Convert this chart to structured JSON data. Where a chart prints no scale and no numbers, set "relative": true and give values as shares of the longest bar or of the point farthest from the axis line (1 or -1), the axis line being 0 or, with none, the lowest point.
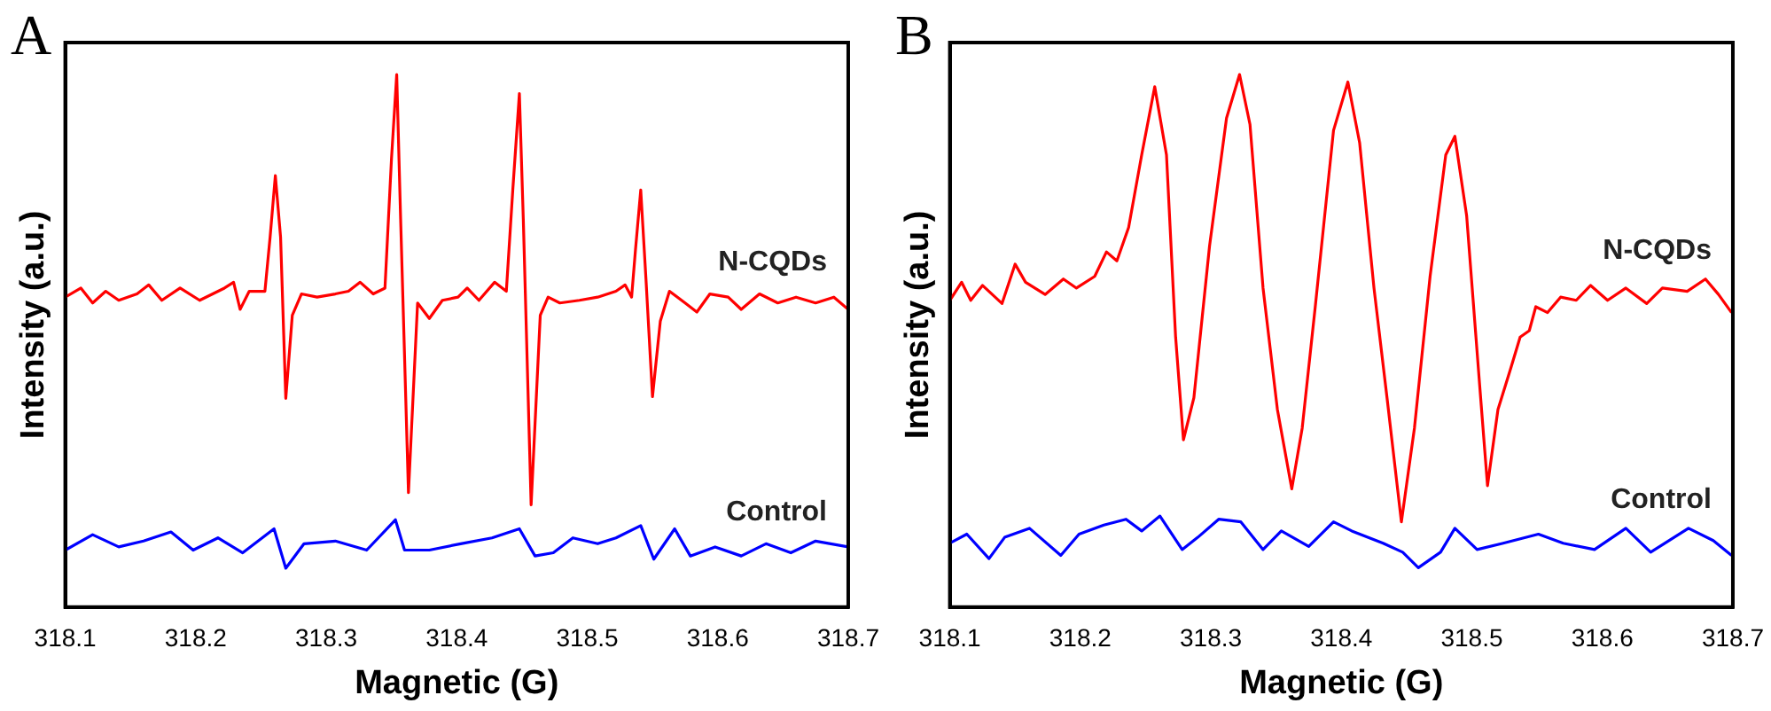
{
  "chart_data": [
    {
      "type": "line",
      "title": "A",
      "xlabel": "Magnetic (G)",
      "ylabel": "Intensity (a.u.)",
      "relative": true,
      "legend": false,
      "grid": false,
      "tick_labels": "x",
      "marker": "none",
      "xlim": [
        318.1,
        318.7
      ],
      "xticks": [
        318.1,
        318.2,
        318.3,
        318.4,
        318.5,
        318.6,
        318.7
      ],
      "series": [
        {
          "name": "N-CQDs",
          "color": "#ff0000",
          "x": [
            318.1,
            318.112,
            318.121,
            318.131,
            318.141,
            318.155,
            318.164,
            318.174,
            318.188,
            318.203,
            318.222,
            318.229,
            318.234,
            318.241,
            318.253,
            318.257,
            318.261,
            318.265,
            318.269,
            318.274,
            318.281,
            318.293,
            318.307,
            318.317,
            318.326,
            318.336,
            318.345,
            318.35,
            318.354,
            318.357,
            318.363,
            318.37,
            318.379,
            318.389,
            318.401,
            318.408,
            318.417,
            318.429,
            318.438,
            318.443,
            318.448,
            318.451,
            318.457,
            318.464,
            318.47,
            318.479,
            318.494,
            318.508,
            318.522,
            318.529,
            318.534,
            318.537,
            318.541,
            318.545,
            318.55,
            318.556,
            318.563,
            318.575,
            318.584,
            318.594,
            318.608,
            318.618,
            318.632,
            318.646,
            318.66,
            318.675,
            318.689,
            318.7
          ],
          "values": [
            0.582,
            0.599,
            0.571,
            0.593,
            0.576,
            0.588,
            0.605,
            0.576,
            0.599,
            0.576,
            0.599,
            0.61,
            0.559,
            0.593,
            0.593,
            0.695,
            0.81,
            0.695,
            0.392,
            0.548,
            0.588,
            0.582,
            0.588,
            0.593,
            0.61,
            0.588,
            0.599,
            0.842,
            1.0,
            0.729,
            0.215,
            0.571,
            0.542,
            0.576,
            0.582,
            0.599,
            0.576,
            0.61,
            0.593,
            0.785,
            0.964,
            0.729,
            0.192,
            0.548,
            0.582,
            0.571,
            0.576,
            0.582,
            0.593,
            0.605,
            0.582,
            0.672,
            0.783,
            0.616,
            0.395,
            0.537,
            0.593,
            0.571,
            0.554,
            0.588,
            0.582,
            0.559,
            0.588,
            0.571,
            0.582,
            0.571,
            0.582,
            0.559
          ]
        },
        {
          "name": "Control",
          "color": "#0000ff",
          "x": [
            318.1,
            318.121,
            318.141,
            318.16,
            318.181,
            318.198,
            318.217,
            318.236,
            318.26,
            318.269,
            318.283,
            318.307,
            318.331,
            318.353,
            318.36,
            318.379,
            318.403,
            318.427,
            318.448,
            318.46,
            318.474,
            318.489,
            318.508,
            318.522,
            318.541,
            318.551,
            318.567,
            318.579,
            318.598,
            318.618,
            318.637,
            318.656,
            318.675,
            318.7
          ],
          "values": [
            0.107,
            0.136,
            0.113,
            0.124,
            0.141,
            0.107,
            0.13,
            0.102,
            0.147,
            0.073,
            0.119,
            0.124,
            0.107,
            0.164,
            0.107,
            0.107,
            0.119,
            0.13,
            0.147,
            0.096,
            0.102,
            0.13,
            0.119,
            0.13,
            0.153,
            0.09,
            0.147,
            0.096,
            0.113,
            0.096,
            0.119,
            0.102,
            0.124,
            0.113
          ]
        }
      ]
    },
    {
      "type": "line",
      "title": "B",
      "xlabel": "Magnetic (G)",
      "ylabel": "Intensity (a.u.)",
      "relative": true,
      "legend": false,
      "grid": false,
      "tick_labels": "x",
      "marker": "none",
      "xlim": [
        318.1,
        318.7
      ],
      "xticks": [
        318.1,
        318.2,
        318.3,
        318.4,
        318.5,
        318.6,
        318.7
      ],
      "series": [
        {
          "name": "N-CQDs",
          "color": "#ff0000",
          "x": [
            318.1,
            318.109,
            318.116,
            318.125,
            318.14,
            318.15,
            318.158,
            318.173,
            318.187,
            318.197,
            318.211,
            318.22,
            318.228,
            318.237,
            318.247,
            318.257,
            318.266,
            318.273,
            318.279,
            318.287,
            318.299,
            318.312,
            318.322,
            318.33,
            318.34,
            318.351,
            318.362,
            318.37,
            318.38,
            318.394,
            318.405,
            318.414,
            318.425,
            318.435,
            318.446,
            318.456,
            318.468,
            318.48,
            318.487,
            318.496,
            318.506,
            318.512,
            318.52,
            318.53,
            318.537,
            318.544,
            318.549,
            318.558,
            318.568,
            318.58,
            318.591,
            318.604,
            318.618,
            318.634,
            318.646,
            318.665,
            318.679,
            318.689,
            318.699
          ],
          "values": [
            0.576,
            0.61,
            0.576,
            0.604,
            0.57,
            0.644,
            0.61,
            0.587,
            0.616,
            0.599,
            0.621,
            0.667,
            0.65,
            0.713,
            0.849,
            0.977,
            0.849,
            0.507,
            0.314,
            0.393,
            0.678,
            0.918,
            1.0,
            0.906,
            0.599,
            0.371,
            0.222,
            0.336,
            0.564,
            0.895,
            0.986,
            0.872,
            0.599,
            0.393,
            0.16,
            0.336,
            0.621,
            0.849,
            0.884,
            0.735,
            0.416,
            0.228,
            0.371,
            0.45,
            0.507,
            0.519,
            0.564,
            0.553,
            0.582,
            0.576,
            0.604,
            0.576,
            0.599,
            0.57,
            0.599,
            0.593,
            0.616,
            0.587,
            0.553
          ]
        },
        {
          "name": "Control",
          "color": "#0000ff",
          "x": [
            318.1,
            318.113,
            318.13,
            318.142,
            318.161,
            318.185,
            318.199,
            318.218,
            318.235,
            318.247,
            318.261,
            318.278,
            318.29,
            318.306,
            318.323,
            318.34,
            318.354,
            318.375,
            318.394,
            318.408,
            318.432,
            318.447,
            318.459,
            318.476,
            318.487,
            318.504,
            318.524,
            318.551,
            318.57,
            318.594,
            318.618,
            318.637,
            318.666,
            318.685,
            318.699
          ],
          "values": [
            0.12,
            0.137,
            0.091,
            0.131,
            0.148,
            0.097,
            0.137,
            0.154,
            0.165,
            0.143,
            0.171,
            0.108,
            0.131,
            0.165,
            0.16,
            0.108,
            0.143,
            0.114,
            0.16,
            0.143,
            0.12,
            0.103,
            0.074,
            0.103,
            0.148,
            0.108,
            0.12,
            0.137,
            0.12,
            0.108,
            0.148,
            0.103,
            0.148,
            0.125,
            0.097
          ]
        }
      ]
    }
  ]
}
